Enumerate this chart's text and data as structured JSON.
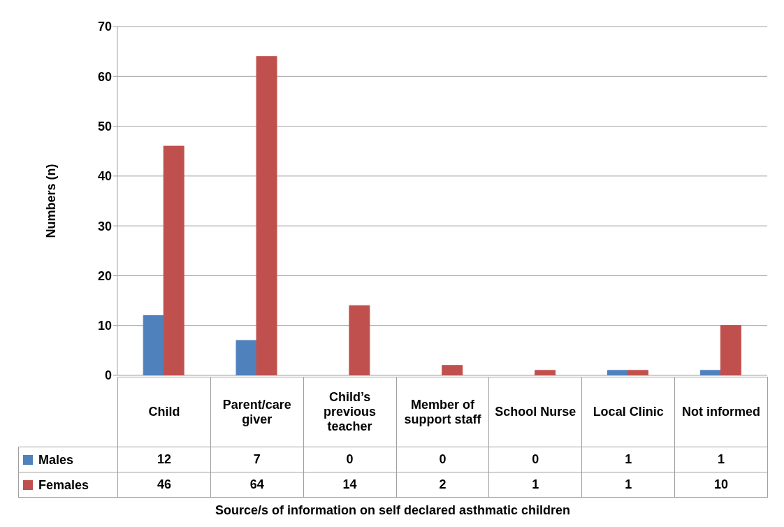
{
  "chart_data": {
    "type": "bar",
    "annotations": [
      "Source/s of information on self declared asthmatic children"
    ],
    "ylabel": "Numbers (n)",
    "categories": [
      "Child",
      "Parent/care giver",
      "Child’s previous teacher",
      "Member of support staff",
      "School Nurse",
      "Local Clinic",
      "Not informed"
    ],
    "series": [
      {
        "name": "Males",
        "color": "#4f81bd",
        "values": [
          12,
          7,
          0,
          0,
          0,
          1,
          1
        ]
      },
      {
        "name": "Females",
        "color": "#c0504d",
        "values": [
          46,
          64,
          14,
          2,
          1,
          1,
          10
        ]
      }
    ],
    "ylim": [
      0,
      70
    ],
    "yticks": [
      0,
      10,
      20,
      30,
      40,
      50,
      60,
      70
    ],
    "grid": "y",
    "legend": "bottom",
    "data_labels": true
  }
}
